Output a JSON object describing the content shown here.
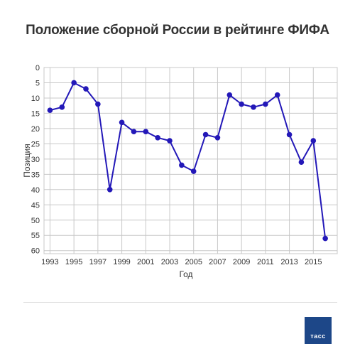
{
  "title": "Положение сборной России в рейтинге ФИФА",
  "logo_text": "тасс",
  "colors": {
    "line": "#2318b8",
    "marker": "#2318b8",
    "grid": "#c8c8c8",
    "axis": "#555555"
  },
  "chart_data": {
    "type": "line",
    "title": "Положение сборной России в рейтинге ФИФА",
    "xlabel": "Год",
    "ylabel": "Позиция",
    "x_ticks": [
      1993,
      1995,
      1997,
      1999,
      2001,
      2003,
      2005,
      2007,
      2009,
      2011,
      2013,
      2015
    ],
    "x_range": [
      1992.5,
      2017.0
    ],
    "y_ticks": [
      0,
      5,
      10,
      15,
      20,
      25,
      30,
      35,
      40,
      45,
      50,
      55,
      60
    ],
    "y_range": [
      0,
      61
    ],
    "y_inverted": true,
    "grid": true,
    "series": [
      {
        "x": [
          1993,
          1994,
          1995,
          1996,
          1997,
          1998,
          1999,
          2000,
          2001,
          2002,
          2003,
          2004,
          2005,
          2006,
          2007,
          2008,
          2009,
          2010,
          2011,
          2012,
          2013,
          2014,
          2015,
          2016
        ],
        "values": [
          14,
          13,
          5,
          7,
          12,
          40,
          18,
          21,
          21,
          23,
          24,
          32,
          34,
          22,
          23,
          9,
          12,
          13,
          12,
          9,
          22,
          31,
          24,
          56
        ]
      }
    ]
  }
}
